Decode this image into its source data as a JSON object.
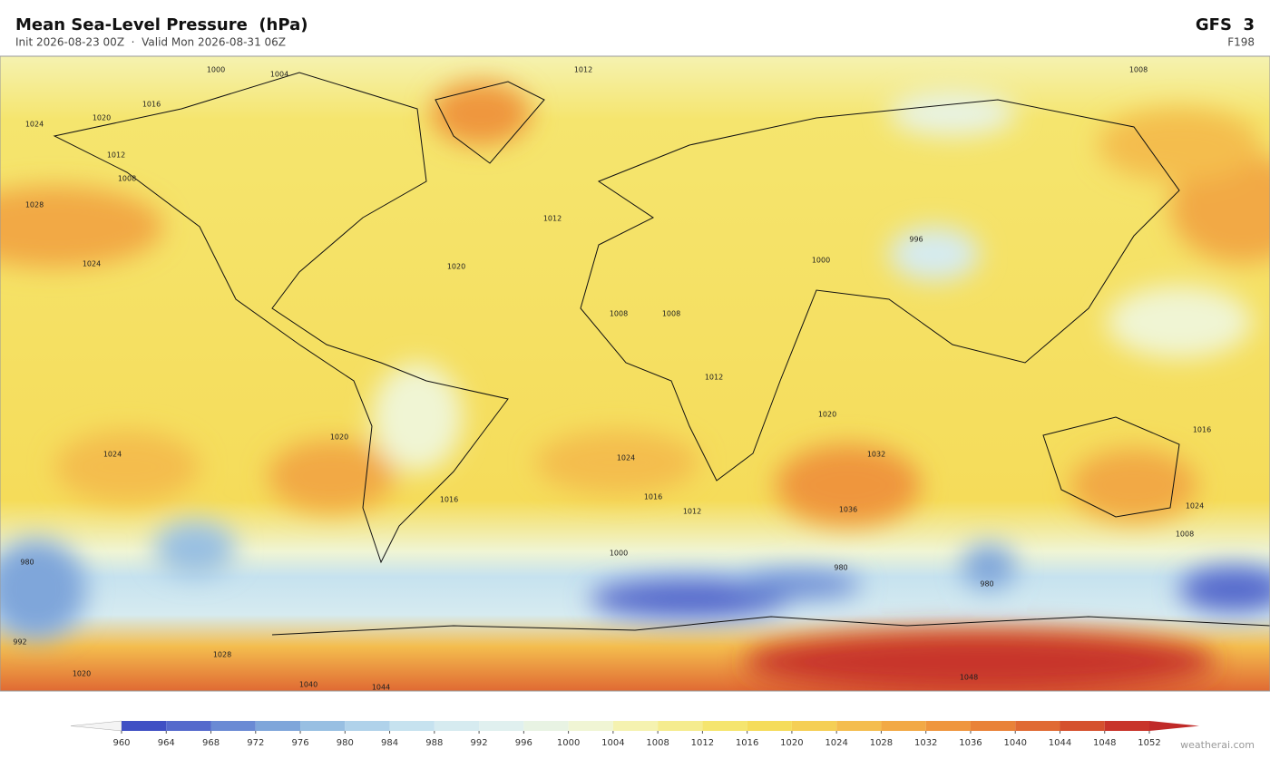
{
  "header": {
    "title": "Mean Sea-Level Pressure  (hPa)",
    "subtitle": "Init 2026-08-23 00Z  ·  Valid Mon 2026-08-31 06Z",
    "model": "GFS  3",
    "forecast_hour": "F198"
  },
  "map": {
    "contour_labels": [
      "1000",
      "1004",
      "1012",
      "1008",
      "1016",
      "1024",
      "1020",
      "1012",
      "1008",
      "1028",
      "1024",
      "1012",
      "1020",
      "1000",
      "996",
      "1008",
      "1008",
      "1012",
      "1020",
      "1024",
      "1020",
      "1024",
      "1032",
      "1036",
      "1016",
      "1012",
      "1016",
      "1016",
      "1024",
      "1000",
      "980",
      "980",
      "980",
      "992",
      "1048",
      "1008",
      "1028",
      "1020",
      "1040",
      "1044"
    ]
  },
  "colorbar": {
    "ticks": [
      960,
      964,
      968,
      972,
      976,
      980,
      984,
      988,
      992,
      996,
      1000,
      1004,
      1008,
      1012,
      1016,
      1020,
      1024,
      1028,
      1032,
      1036,
      1040,
      1044,
      1048,
      1052
    ],
    "colors": [
      "#3f4fc4",
      "#5569cc",
      "#6a8ad4",
      "#7fa6da",
      "#98bfe2",
      "#b0d2ea",
      "#c6e2ef",
      "#d6ebf0",
      "#e0f0ef",
      "#e8f3e3",
      "#f0f5d4",
      "#f5f2b0",
      "#f5ec8e",
      "#f5e56e",
      "#f5dc5a",
      "#f5cf55",
      "#f4bd4e",
      "#f2a945",
      "#ef963e",
      "#e98238",
      "#e06a33",
      "#d5512e",
      "#c8342a"
    ],
    "under_color": "#f4f4f4",
    "over_color": "#c02a28"
  },
  "credit": "weatherai.com"
}
